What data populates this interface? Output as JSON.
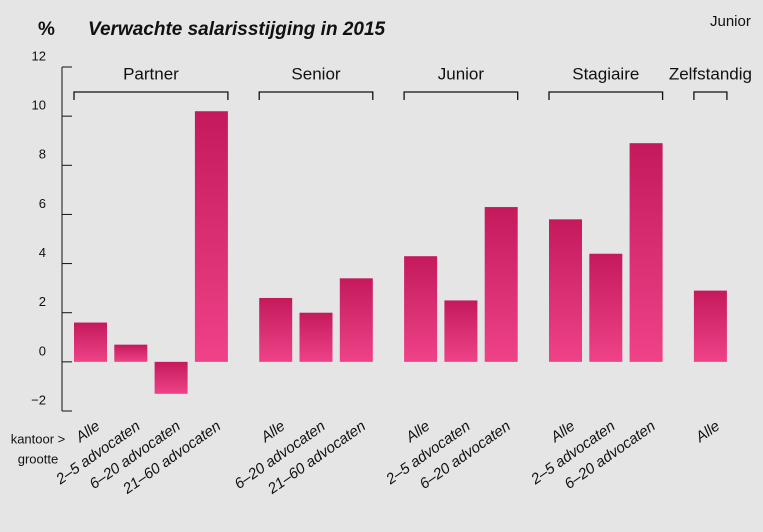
{
  "chart_data": {
    "type": "bar",
    "title_unit": "%",
    "title": "Verwachte salarisstijging in 2015",
    "annotation": "Junior",
    "xlabel_lines": [
      "kantoor >",
      "grootte"
    ],
    "color_top": "#c41a5c",
    "color_bottom": "#ef4288",
    "ylim": [
      -2,
      12
    ],
    "yticks": [
      {
        "value": -2,
        "label": "−2"
      },
      0,
      2,
      4,
      6,
      8,
      10,
      12
    ],
    "groups": [
      {
        "name": "Partner",
        "categories": [
          "Alle",
          "2–5 advocaten",
          "6–20 advocaten",
          "21–60 advocaten"
        ],
        "values": [
          1.6,
          0.7,
          -1.3,
          10.2
        ]
      },
      {
        "name": "Senior",
        "categories": [
          "Alle",
          "6–20 advocaten",
          "21–60 advocaten"
        ],
        "values": [
          2.6,
          2.0,
          3.4
        ]
      },
      {
        "name": "Junior",
        "categories": [
          "Alle",
          "2–5 advocaten",
          "6–20 advocaten"
        ],
        "values": [
          4.3,
          2.5,
          6.3
        ]
      },
      {
        "name": "Stagiaire",
        "categories": [
          "Alle",
          "2–5 advocaten",
          "6–20 advocaten"
        ],
        "values": [
          5.8,
          4.4,
          8.9
        ]
      },
      {
        "name": "Zelfstandig",
        "categories": [
          "Alle"
        ],
        "values": [
          2.9
        ]
      }
    ]
  }
}
